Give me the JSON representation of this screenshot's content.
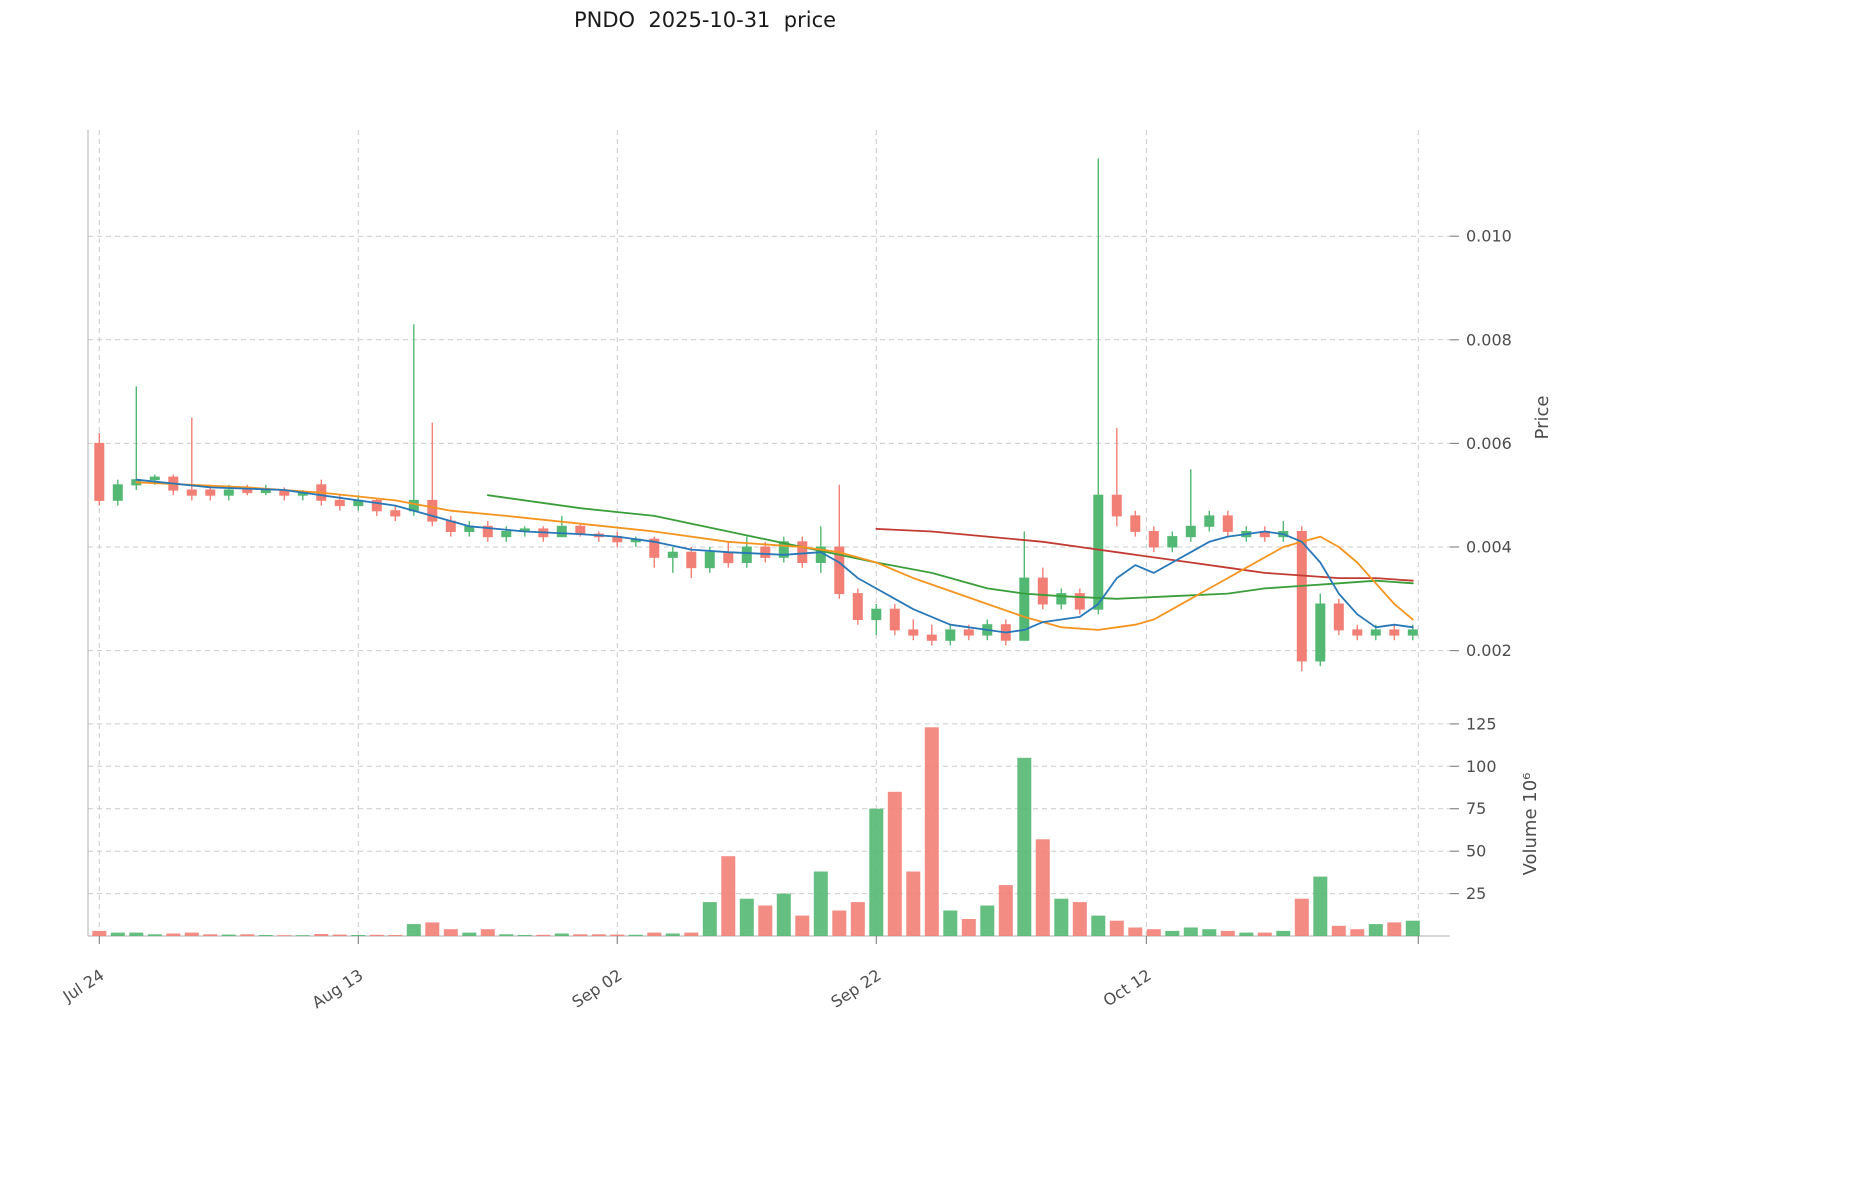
{
  "title": "PNDO  2025-10-31  price",
  "colors": {
    "up": "#53b873",
    "down": "#f27f76",
    "ma_short": "#2878b8",
    "ma_mid": "#f5941f",
    "ma_long": "#3a9e3a",
    "ma_xlong": "#c23b33",
    "grid": "#cccccc",
    "spine": "#b0b0b0",
    "text": "#4d4d4d",
    "title_text": "#1a1a1a",
    "background": "#ffffff"
  },
  "axes": {
    "price_axis_title": "Price",
    "volume_axis_title": "Volume  10⁶",
    "price_ticks": [
      {
        "value": 0.002,
        "label": "0.002"
      },
      {
        "value": 0.004,
        "label": "0.004"
      },
      {
        "value": 0.006,
        "label": "0.006"
      },
      {
        "value": 0.008,
        "label": "0.008"
      },
      {
        "value": 0.01,
        "label": "0.010"
      }
    ],
    "volume_ticks": [
      {
        "value": 25,
        "label": "25"
      },
      {
        "value": 50,
        "label": "50"
      },
      {
        "value": 75,
        "label": "75"
      },
      {
        "value": 100,
        "label": "100"
      },
      {
        "value": 125,
        "label": "125"
      }
    ],
    "x_ticks": [
      {
        "index": 0,
        "label": "Jul 24"
      },
      {
        "index": 14,
        "label": "Aug 13"
      },
      {
        "index": 28,
        "label": "Sep 02"
      },
      {
        "index": 42,
        "label": "Sep 22"
      },
      {
        "index": 56.6,
        "label": "Oct 12"
      },
      {
        "index": 71.3,
        "label": ""
      }
    ],
    "price_ylim": [
      0.00095,
      0.01205
    ],
    "volume_ylim": [
      0,
      132
    ],
    "grid": "dashed"
  },
  "chart_data": {
    "type": "candlestick",
    "symbol": "PNDO",
    "as_of_date": "2025-10-31",
    "legend_position": "none",
    "dates": [
      "2025-07-24",
      "2025-07-25",
      "2025-07-28",
      "2025-07-29",
      "2025-07-30",
      "2025-07-31",
      "2025-08-01",
      "2025-08-04",
      "2025-08-05",
      "2025-08-06",
      "2025-08-07",
      "2025-08-08",
      "2025-08-11",
      "2025-08-12",
      "2025-08-13",
      "2025-08-14",
      "2025-08-15",
      "2025-08-18",
      "2025-08-19",
      "2025-08-20",
      "2025-08-21",
      "2025-08-22",
      "2025-08-25",
      "2025-08-26",
      "2025-08-27",
      "2025-08-28",
      "2025-08-29",
      "2025-09-01",
      "2025-09-02",
      "2025-09-03",
      "2025-09-04",
      "2025-09-05",
      "2025-09-08",
      "2025-09-09",
      "2025-09-10",
      "2025-09-11",
      "2025-09-12",
      "2025-09-15",
      "2025-09-16",
      "2025-09-17",
      "2025-09-18",
      "2025-09-19",
      "2025-09-22",
      "2025-09-23",
      "2025-09-24",
      "2025-09-25",
      "2025-09-26",
      "2025-09-29",
      "2025-09-30",
      "2025-10-01",
      "2025-10-02",
      "2025-10-03",
      "2025-10-06",
      "2025-10-07",
      "2025-10-08",
      "2025-10-09",
      "2025-10-10",
      "2025-10-13",
      "2025-10-14",
      "2025-10-15",
      "2025-10-16",
      "2025-10-17",
      "2025-10-20",
      "2025-10-21",
      "2025-10-22",
      "2025-10-23",
      "2025-10-24",
      "2025-10-27",
      "2025-10-28",
      "2025-10-29",
      "2025-10-30",
      "2025-10-31"
    ],
    "ohlc": [
      [
        0.006,
        0.0062,
        0.0048,
        0.0049
      ],
      [
        0.0049,
        0.0053,
        0.0048,
        0.0052
      ],
      [
        0.0052,
        0.0071,
        0.0051,
        0.0053
      ],
      [
        0.0053,
        0.0054,
        0.0052,
        0.00535
      ],
      [
        0.00535,
        0.0054,
        0.005,
        0.0051
      ],
      [
        0.0051,
        0.0065,
        0.0049,
        0.005
      ],
      [
        0.0051,
        0.0052,
        0.0049,
        0.005
      ],
      [
        0.005,
        0.0052,
        0.0049,
        0.0051
      ],
      [
        0.0051,
        0.0052,
        0.005,
        0.00505
      ],
      [
        0.00505,
        0.0052,
        0.005,
        0.0051
      ],
      [
        0.0051,
        0.00515,
        0.0049,
        0.005
      ],
      [
        0.005,
        0.0051,
        0.0049,
        0.00505
      ],
      [
        0.0052,
        0.0053,
        0.0048,
        0.0049
      ],
      [
        0.0049,
        0.005,
        0.0047,
        0.0048
      ],
      [
        0.0048,
        0.005,
        0.0047,
        0.0049
      ],
      [
        0.0049,
        0.00495,
        0.0046,
        0.0047
      ],
      [
        0.0047,
        0.0048,
        0.0045,
        0.0046
      ],
      [
        0.0047,
        0.0083,
        0.0046,
        0.0049
      ],
      [
        0.0049,
        0.0064,
        0.0044,
        0.0045
      ],
      [
        0.0045,
        0.0046,
        0.0042,
        0.0043
      ],
      [
        0.0043,
        0.0045,
        0.0042,
        0.0044
      ],
      [
        0.0044,
        0.0045,
        0.0041,
        0.0042
      ],
      [
        0.0042,
        0.0044,
        0.0041,
        0.0043
      ],
      [
        0.0043,
        0.0044,
        0.0042,
        0.00435
      ],
      [
        0.00435,
        0.0044,
        0.0041,
        0.0042
      ],
      [
        0.0042,
        0.0046,
        0.0042,
        0.0044
      ],
      [
        0.0044,
        0.00445,
        0.0042,
        0.00425
      ],
      [
        0.00425,
        0.0043,
        0.0041,
        0.0042
      ],
      [
        0.0042,
        0.0043,
        0.004,
        0.0041
      ],
      [
        0.0041,
        0.0042,
        0.004,
        0.00415
      ],
      [
        0.00415,
        0.0042,
        0.0036,
        0.0038
      ],
      [
        0.0038,
        0.004,
        0.0035,
        0.0039
      ],
      [
        0.0039,
        0.004,
        0.0034,
        0.0036
      ],
      [
        0.0036,
        0.004,
        0.0035,
        0.0039
      ],
      [
        0.0039,
        0.0041,
        0.0036,
        0.0037
      ],
      [
        0.0037,
        0.0042,
        0.0036,
        0.004
      ],
      [
        0.004,
        0.0041,
        0.0037,
        0.0038
      ],
      [
        0.0038,
        0.0042,
        0.0037,
        0.0041
      ],
      [
        0.0041,
        0.0042,
        0.0036,
        0.0037
      ],
      [
        0.0037,
        0.0044,
        0.0035,
        0.004
      ],
      [
        0.004,
        0.0052,
        0.003,
        0.0031
      ],
      [
        0.0031,
        0.0032,
        0.0025,
        0.0026
      ],
      [
        0.0026,
        0.0029,
        0.0023,
        0.0028
      ],
      [
        0.0028,
        0.0029,
        0.0023,
        0.0024
      ],
      [
        0.0024,
        0.0026,
        0.0022,
        0.0023
      ],
      [
        0.0023,
        0.0025,
        0.0021,
        0.0022
      ],
      [
        0.0022,
        0.0025,
        0.0021,
        0.0024
      ],
      [
        0.0024,
        0.0025,
        0.0022,
        0.0023
      ],
      [
        0.0023,
        0.0026,
        0.0022,
        0.0025
      ],
      [
        0.0025,
        0.0026,
        0.0021,
        0.0022
      ],
      [
        0.0022,
        0.0043,
        0.0022,
        0.0034
      ],
      [
        0.0034,
        0.0036,
        0.0028,
        0.0029
      ],
      [
        0.0029,
        0.0032,
        0.0028,
        0.0031
      ],
      [
        0.0031,
        0.0032,
        0.0027,
        0.0028
      ],
      [
        0.0028,
        0.0115,
        0.0027,
        0.005
      ],
      [
        0.005,
        0.0063,
        0.0044,
        0.0046
      ],
      [
        0.0046,
        0.0047,
        0.0042,
        0.0043
      ],
      [
        0.0043,
        0.0044,
        0.0039,
        0.004
      ],
      [
        0.004,
        0.0043,
        0.0039,
        0.0042
      ],
      [
        0.0042,
        0.0055,
        0.0041,
        0.0044
      ],
      [
        0.0044,
        0.0047,
        0.0043,
        0.0046
      ],
      [
        0.0046,
        0.0047,
        0.0042,
        0.0043
      ],
      [
        0.0042,
        0.0044,
        0.0041,
        0.0043
      ],
      [
        0.0043,
        0.0044,
        0.0041,
        0.0042
      ],
      [
        0.0042,
        0.0045,
        0.0041,
        0.0043
      ],
      [
        0.0043,
        0.0044,
        0.0016,
        0.0018
      ],
      [
        0.0018,
        0.0031,
        0.0017,
        0.0029
      ],
      [
        0.0029,
        0.003,
        0.0023,
        0.0024
      ],
      [
        0.0024,
        0.0025,
        0.0022,
        0.0023
      ],
      [
        0.0023,
        0.0025,
        0.0022,
        0.0024
      ],
      [
        0.0024,
        0.0025,
        0.0022,
        0.0023
      ],
      [
        0.0023,
        0.0025,
        0.0022,
        0.0024
      ]
    ],
    "volume_millions": [
      3,
      2,
      2,
      1,
      1.5,
      2,
      1,
      0.8,
      1,
      0.6,
      0.5,
      0.5,
      1.2,
      0.8,
      0.6,
      0.7,
      0.6,
      7,
      8,
      4,
      2,
      4,
      1,
      0.6,
      0.7,
      1.5,
      1,
      1,
      0.8,
      0.7,
      2,
      1.5,
      2,
      20,
      47,
      22,
      18,
      25,
      12,
      38,
      15,
      20,
      75,
      85,
      38,
      123,
      15,
      10,
      18,
      30,
      105,
      57,
      22,
      20,
      12,
      9,
      5,
      4,
      3,
      5,
      4,
      3,
      2,
      2,
      3,
      22,
      35,
      6,
      4,
      7,
      8,
      9
    ],
    "overlays": [
      {
        "name": "ma-long-green",
        "color": "#3a9e3a",
        "points": [
          [
            21,
            0.005
          ],
          [
            26,
            0.00475
          ],
          [
            30,
            0.0046
          ],
          [
            34,
            0.0043
          ],
          [
            38,
            0.004
          ],
          [
            42,
            0.0037
          ],
          [
            45,
            0.0035
          ],
          [
            48,
            0.0032
          ],
          [
            50,
            0.0031
          ],
          [
            52,
            0.00305
          ],
          [
            55,
            0.003
          ],
          [
            58,
            0.00305
          ],
          [
            61,
            0.0031
          ],
          [
            63,
            0.0032
          ],
          [
            65,
            0.00325
          ],
          [
            67,
            0.0033
          ],
          [
            69,
            0.00335
          ],
          [
            71,
            0.0033
          ]
        ]
      },
      {
        "name": "ma-xlong-red",
        "color": "#c23b33",
        "points": [
          [
            42,
            0.00435
          ],
          [
            45,
            0.0043
          ],
          [
            48,
            0.0042
          ],
          [
            51,
            0.0041
          ],
          [
            53,
            0.004
          ],
          [
            55,
            0.0039
          ],
          [
            57,
            0.0038
          ],
          [
            59,
            0.0037
          ],
          [
            61,
            0.0036
          ],
          [
            63,
            0.0035
          ],
          [
            65,
            0.00345
          ],
          [
            67,
            0.0034
          ],
          [
            69,
            0.0034
          ],
          [
            71,
            0.00335
          ]
        ]
      },
      {
        "name": "ma-mid-orange",
        "color": "#f5941f",
        "points": [
          [
            2,
            0.00525
          ],
          [
            8,
            0.00515
          ],
          [
            12,
            0.00505
          ],
          [
            16,
            0.0049
          ],
          [
            19,
            0.0047
          ],
          [
            22,
            0.0046
          ],
          [
            26,
            0.00445
          ],
          [
            30,
            0.0043
          ],
          [
            34,
            0.0041
          ],
          [
            38,
            0.004
          ],
          [
            40,
            0.0039
          ],
          [
            42,
            0.0037
          ],
          [
            44,
            0.0034
          ],
          [
            46,
            0.00315
          ],
          [
            48,
            0.0029
          ],
          [
            50,
            0.00265
          ],
          [
            52,
            0.00245
          ],
          [
            54,
            0.0024
          ],
          [
            55,
            0.00245
          ],
          [
            56,
            0.0025
          ],
          [
            57,
            0.0026
          ],
          [
            58,
            0.0028
          ],
          [
            59,
            0.003
          ],
          [
            60,
            0.0032
          ],
          [
            61,
            0.0034
          ],
          [
            62,
            0.0036
          ],
          [
            63,
            0.0038
          ],
          [
            64,
            0.004
          ],
          [
            65,
            0.0041
          ],
          [
            66,
            0.0042
          ],
          [
            67,
            0.004
          ],
          [
            68,
            0.0037
          ],
          [
            69,
            0.0033
          ],
          [
            70,
            0.0029
          ],
          [
            71,
            0.0026
          ]
        ]
      },
      {
        "name": "ma-short-blue",
        "color": "#2878b8",
        "points": [
          [
            2,
            0.0053
          ],
          [
            6,
            0.00515
          ],
          [
            10,
            0.0051
          ],
          [
            13,
            0.00495
          ],
          [
            16,
            0.0048
          ],
          [
            18,
            0.0046
          ],
          [
            20,
            0.0044
          ],
          [
            23,
            0.0043
          ],
          [
            26,
            0.00425
          ],
          [
            28,
            0.0042
          ],
          [
            30,
            0.0041
          ],
          [
            32,
            0.00395
          ],
          [
            34,
            0.0039
          ],
          [
            37,
            0.00385
          ],
          [
            39,
            0.0039
          ],
          [
            40,
            0.0037
          ],
          [
            41,
            0.0034
          ],
          [
            43,
            0.003
          ],
          [
            44,
            0.0028
          ],
          [
            45,
            0.00265
          ],
          [
            46,
            0.0025
          ],
          [
            47,
            0.00245
          ],
          [
            48,
            0.0024
          ],
          [
            49,
            0.00235
          ],
          [
            50,
            0.0024
          ],
          [
            51,
            0.00255
          ],
          [
            52,
            0.0026
          ],
          [
            53,
            0.00265
          ],
          [
            54,
            0.0029
          ],
          [
            55,
            0.0034
          ],
          [
            56,
            0.00365
          ],
          [
            57,
            0.0035
          ],
          [
            58,
            0.0037
          ],
          [
            59,
            0.0039
          ],
          [
            60,
            0.0041
          ],
          [
            61,
            0.0042
          ],
          [
            62,
            0.00425
          ],
          [
            63,
            0.0043
          ],
          [
            64,
            0.00425
          ],
          [
            65,
            0.0041
          ],
          [
            66,
            0.0037
          ],
          [
            67,
            0.0031
          ],
          [
            68,
            0.0027
          ],
          [
            69,
            0.00245
          ],
          [
            70,
            0.0025
          ],
          [
            71,
            0.00245
          ]
        ]
      }
    ]
  }
}
